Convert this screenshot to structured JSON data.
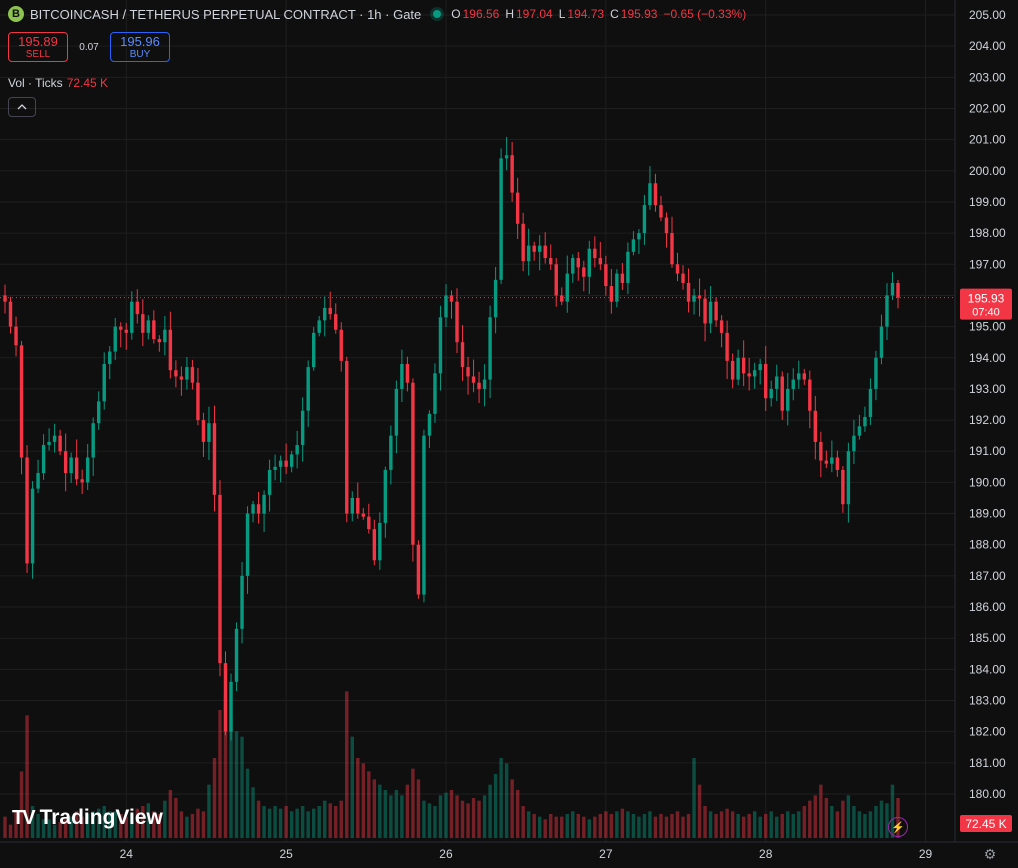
{
  "header": {
    "logo_glyph": "B",
    "title": "BITCOINCASH / TETHERUS PERPETUAL CONTRACT · 1h · Gate",
    "o_label": "O",
    "o": "196.56",
    "h_label": "H",
    "h": "197.04",
    "l_label": "L",
    "l": "194.73",
    "c_label": "C",
    "c": "195.93",
    "change": "−0.65 (−0.33%)"
  },
  "trade": {
    "sell_price": "195.89",
    "sell_label": "SELL",
    "spread": "0.07",
    "buy_price": "195.96",
    "buy_label": "BUY"
  },
  "volume_indicator": {
    "label": "Vol · Ticks",
    "value": "72.45 K"
  },
  "watermark": {
    "text": "TradingView",
    "logo": "TV"
  },
  "colors": {
    "up": "#089981",
    "down": "#f23645",
    "background": "#0f0f0f",
    "grid": "#1f1f1f",
    "text": "#d1d4dc"
  },
  "chart_data": {
    "type": "candlestick",
    "interval": "1h",
    "x_tick_labels": [
      "24",
      "25",
      "26",
      "27",
      "28",
      "29"
    ],
    "y_tick_labels": [
      "180.00",
      "181.00",
      "182.00",
      "183.00",
      "184.00",
      "185.00",
      "186.00",
      "187.00",
      "188.00",
      "189.00",
      "190.00",
      "191.00",
      "192.00",
      "193.00",
      "194.00",
      "195.00",
      "196.00",
      "197.00",
      "198.00",
      "199.00",
      "200.00",
      "201.00",
      "202.00",
      "203.00",
      "204.00",
      "205.00"
    ],
    "ylim": [
      179.4,
      205.4
    ],
    "last_price": 195.93,
    "last_price_label": "195.93",
    "countdown_label": "07:40",
    "volume_label": "72.45 K",
    "grid": true,
    "closes": [
      195.8,
      195.0,
      194.4,
      190.8,
      187.4,
      189.8,
      190.3,
      191.2,
      191.3,
      191.5,
      191.0,
      190.3,
      190.8,
      190.1,
      190.0,
      190.8,
      191.9,
      192.6,
      193.8,
      194.2,
      195.0,
      194.9,
      194.8,
      195.8,
      195.4,
      194.8,
      195.2,
      194.6,
      194.5,
      194.9,
      193.6,
      193.4,
      193.3,
      193.7,
      193.2,
      192.0,
      191.3,
      191.9,
      189.6,
      184.2,
      182.0,
      183.6,
      185.3,
      187.0,
      189.0,
      189.3,
      189.0,
      189.6,
      190.4,
      190.5,
      190.7,
      190.5,
      190.9,
      191.2,
      192.3,
      193.7,
      194.8,
      195.2,
      195.6,
      195.4,
      194.9,
      193.9,
      189.0,
      189.5,
      189.0,
      188.9,
      188.5,
      187.5,
      188.7,
      190.4,
      191.5,
      193.0,
      193.8,
      193.2,
      188.0,
      186.4,
      191.5,
      192.2,
      193.5,
      195.3,
      196.0,
      195.8,
      194.5,
      193.7,
      193.4,
      193.2,
      193.0,
      193.3,
      195.3,
      196.5,
      200.4,
      200.5,
      199.3,
      198.3,
      197.1,
      197.6,
      197.4,
      197.6,
      197.2,
      197.0,
      196.0,
      195.8,
      196.7,
      197.2,
      196.9,
      196.6,
      197.5,
      197.2,
      197.0,
      196.3,
      195.8,
      196.7,
      196.4,
      197.4,
      197.8,
      198.0,
      198.9,
      199.6,
      198.9,
      198.5,
      198.0,
      197.0,
      196.7,
      196.4,
      195.8,
      196.0,
      195.9,
      195.1,
      195.8,
      195.2,
      194.8,
      193.9,
      193.3,
      194.0,
      193.5,
      193.4,
      193.6,
      193.8,
      192.7,
      193.0,
      193.4,
      192.3,
      193.0,
      193.3,
      193.5,
      193.3,
      192.3,
      191.3,
      190.7,
      190.6,
      190.8,
      190.4,
      189.3,
      191.0,
      191.5,
      191.8,
      192.1,
      193.0,
      194.0,
      195.0,
      196.0,
      196.4,
      195.93
    ],
    "volumes": [
      8,
      5,
      10,
      25,
      46,
      12,
      9,
      7,
      7,
      5,
      6,
      7,
      8,
      10,
      8,
      9,
      10,
      11,
      12,
      10,
      10,
      9,
      8,
      9,
      11,
      12,
      13,
      10,
      9,
      14,
      18,
      15,
      10,
      8,
      9,
      11,
      10,
      20,
      30,
      48,
      54,
      45,
      40,
      38,
      26,
      19,
      14,
      12,
      11,
      12,
      11,
      12,
      10,
      11,
      12,
      10,
      11,
      12,
      14,
      13,
      12,
      14,
      55,
      38,
      30,
      28,
      25,
      22,
      20,
      18,
      16,
      18,
      16,
      20,
      26,
      22,
      14,
      13,
      12,
      16,
      17,
      18,
      16,
      14,
      13,
      15,
      14,
      16,
      20,
      24,
      30,
      28,
      22,
      18,
      12,
      10,
      9,
      8,
      7,
      9,
      8,
      8,
      9,
      10,
      9,
      8,
      7,
      8,
      9,
      10,
      9,
      10,
      11,
      10,
      9,
      8,
      9,
      10,
      8,
      9,
      8,
      9,
      10,
      8,
      9,
      30,
      20,
      12,
      10,
      9,
      10,
      11,
      10,
      9,
      8,
      9,
      10,
      8,
      9,
      10,
      8,
      9,
      10,
      9,
      10,
      12,
      14,
      16,
      20,
      15,
      12,
      10,
      14,
      16,
      12,
      10,
      9,
      10,
      12,
      14,
      13,
      20,
      15,
      10
    ]
  }
}
